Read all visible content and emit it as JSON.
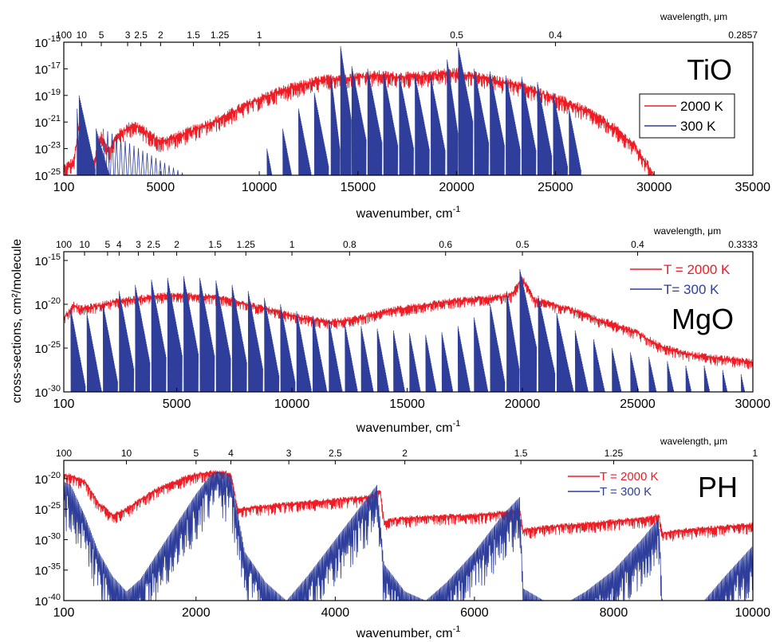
{
  "figure": {
    "y_title": "cross-sections, cm²/molecule",
    "x_title": "wavenumber, cm",
    "x_title_sup": "-1",
    "top_axis_label": "wavelength, μm"
  },
  "colors": {
    "hot": "#ee1c24",
    "cold": "#2e3e9a"
  },
  "chart_data": [
    {
      "type": "line",
      "molecule": "TiO",
      "xlim": [
        100,
        35000
      ],
      "ylim_log10": [
        -25,
        -15
      ],
      "x_ticks": [
        100,
        5000,
        10000,
        15000,
        20000,
        25000,
        30000,
        35000
      ],
      "x_tick_labels": [
        "100",
        "5000",
        "10000",
        "15000",
        "20000",
        "25000",
        "30000",
        "35000"
      ],
      "y_ticks_log10": [
        -25,
        -23,
        -21,
        -19,
        -17,
        -15
      ],
      "top_ticks": [
        {
          "label": "100",
          "wn": 100
        },
        {
          "label": "10",
          "wn": 1000
        },
        {
          "label": "5",
          "wn": 2000
        },
        {
          "label": "3",
          "wn": 3333
        },
        {
          "label": "2.5",
          "wn": 4000
        },
        {
          "label": "2",
          "wn": 5000
        },
        {
          "label": "1.5",
          "wn": 6667
        },
        {
          "label": "1.25",
          "wn": 8000
        },
        {
          "label": "1",
          "wn": 10000
        },
        {
          "label": "0.5",
          "wn": 20000
        },
        {
          "label": "0.4",
          "wn": 25000
        },
        {
          "label": "0.2857",
          "wn": 35000
        }
      ],
      "legend": [
        "2000 K",
        "300 K"
      ],
      "series": [
        {
          "name": "2000 K",
          "x": [
            100,
            300,
            600,
            900,
            1100,
            1300,
            1600,
            2000,
            2400,
            2800,
            3200,
            3600,
            4000,
            4500,
            5000,
            6000,
            7000,
            8000,
            9000,
            10000,
            11000,
            12000,
            13000,
            14000,
            15000,
            16000,
            17000,
            18000,
            19000,
            20000,
            21000,
            22000,
            23000,
            24000,
            25000,
            26000,
            27000,
            28000,
            29000,
            30000
          ],
          "y_log10": [
            -24.5,
            -24.3,
            -24.0,
            -21.0,
            -21.5,
            -24.2,
            -24.2,
            -22.0,
            -23.2,
            -22.0,
            -21.6,
            -21.2,
            -21.5,
            -22.0,
            -22.5,
            -22.0,
            -21.4,
            -20.8,
            -20.0,
            -19.3,
            -18.7,
            -18.3,
            -17.9,
            -17.7,
            -17.6,
            -17.5,
            -17.6,
            -17.6,
            -17.4,
            -17.3,
            -17.6,
            -17.9,
            -18.2,
            -18.7,
            -19.2,
            -19.8,
            -20.5,
            -21.5,
            -22.8,
            -25.0
          ]
        },
        {
          "name": "300 K",
          "band_centers": [
            800,
            1000,
            1900,
            3100,
            10500,
            11300,
            12100,
            12900,
            13700,
            14200,
            14800,
            15600,
            16400,
            17200,
            18000,
            18800,
            19600,
            20200,
            21000,
            21800,
            22600,
            23400,
            24200,
            25000,
            25800
          ],
          "band_peaks_log10": [
            -20.0,
            -19.0,
            -21.5,
            -21.5,
            -23.0,
            -21.5,
            -20.0,
            -18.8,
            -17.5,
            -15.3,
            -16.8,
            -17.0,
            -17.2,
            -17.4,
            -17.5,
            -17.6,
            -16.3,
            -15.4,
            -17.0,
            -17.2,
            -17.5,
            -17.6,
            -18.0,
            -18.8,
            -20.0
          ],
          "x_range": [
            100,
            26300
          ]
        }
      ]
    },
    {
      "type": "line",
      "molecule": "MgO",
      "xlim": [
        100,
        30000
      ],
      "ylim_log10": [
        -30,
        -14
      ],
      "x_ticks": [
        100,
        5000,
        10000,
        15000,
        20000,
        25000,
        30000
      ],
      "x_tick_labels": [
        "100",
        "5000",
        "10000",
        "15000",
        "20000",
        "25000",
        "30000"
      ],
      "y_ticks_log10": [
        -30,
        -25,
        -20,
        -15
      ],
      "top_ticks": [
        {
          "label": "100",
          "wn": 100
        },
        {
          "label": "10",
          "wn": 1000
        },
        {
          "label": "5",
          "wn": 2000
        },
        {
          "label": "4",
          "wn": 2500
        },
        {
          "label": "3",
          "wn": 3333
        },
        {
          "label": "2.5",
          "wn": 4000
        },
        {
          "label": "2",
          "wn": 5000
        },
        {
          "label": "1.5",
          "wn": 6667
        },
        {
          "label": "1.25",
          "wn": 8000
        },
        {
          "label": "1",
          "wn": 10000
        },
        {
          "label": "0.8",
          "wn": 12500
        },
        {
          "label": "0.6",
          "wn": 16667
        },
        {
          "label": "0.5",
          "wn": 20000
        },
        {
          "label": "0.4",
          "wn": 25000
        },
        {
          "label": "0.3333",
          "wn": 30000
        }
      ],
      "legend": [
        "T = 2000 K",
        "T= 300 K"
      ],
      "series": [
        {
          "name": "T = 2000 K",
          "x": [
            100,
            300,
            500,
            800,
            1500,
            2500,
            3500,
            4500,
            5500,
            6500,
            7500,
            8500,
            9500,
            10500,
            11500,
            12500,
            13500,
            14500,
            15500,
            16500,
            17500,
            18500,
            19500,
            20000,
            20500,
            21000,
            22000,
            23000,
            24000,
            25000,
            26000,
            27000,
            28000,
            29000,
            30000
          ],
          "y_log10": [
            -21.5,
            -21.0,
            -20.0,
            -20.5,
            -20.2,
            -19.6,
            -19.3,
            -19.0,
            -19.0,
            -19.2,
            -19.6,
            -20.3,
            -21.0,
            -21.6,
            -22.0,
            -21.8,
            -21.2,
            -20.6,
            -20.2,
            -19.8,
            -19.5,
            -19.3,
            -19.0,
            -17.0,
            -19.5,
            -19.8,
            -20.5,
            -21.5,
            -22.3,
            -23.3,
            -24.8,
            -25.6,
            -26.0,
            -26.3,
            -26.6
          ]
        },
        {
          "name": "T= 300 K",
          "band_centers": [
            500,
            1200,
            1900,
            2600,
            3300,
            4000,
            4700,
            5400,
            6100,
            6800,
            7500,
            8200,
            8900,
            9600,
            10300,
            11000,
            11700,
            12400,
            13100,
            13800,
            14500,
            15200,
            15900,
            16600,
            17300,
            18000,
            18700,
            19400,
            20000,
            20800,
            21600,
            22400,
            23200,
            24000,
            24800,
            25600,
            26400,
            27200,
            28000,
            28800,
            29600
          ],
          "band_peaks_log10": [
            -20.5,
            -21.0,
            -20.0,
            -18.5,
            -17.8,
            -17.2,
            -17.0,
            -16.8,
            -17.0,
            -17.3,
            -17.8,
            -18.5,
            -19.3,
            -20.0,
            -20.8,
            -21.3,
            -21.8,
            -22.3,
            -22.5,
            -22.8,
            -23.0,
            -23.3,
            -23.5,
            -23.2,
            -22.5,
            -21.5,
            -20.0,
            -18.5,
            -16.0,
            -19.0,
            -21.0,
            -23.0,
            -24.0,
            -25.0,
            -25.5,
            -26.0,
            -26.5,
            -27.0,
            -27.0,
            -27.5,
            -28.0
          ],
          "x_range": [
            100,
            30000
          ]
        }
      ]
    },
    {
      "type": "line",
      "molecule": "PH",
      "xlim": [
        100,
        10000
      ],
      "ylim_log10": [
        -40,
        -17
      ],
      "x_ticks": [
        100,
        2000,
        4000,
        6000,
        8000,
        10000
      ],
      "x_tick_labels": [
        "100",
        "2000",
        "4000",
        "6000",
        "8000",
        "10000"
      ],
      "y_ticks_log10": [
        -40,
        -35,
        -30,
        -25,
        -20
      ],
      "top_ticks": [
        {
          "label": "100",
          "wn": 100
        },
        {
          "label": "10",
          "wn": 1000
        },
        {
          "label": "5",
          "wn": 2000
        },
        {
          "label": "4",
          "wn": 2500
        },
        {
          "label": "3",
          "wn": 3333
        },
        {
          "label": "2.5",
          "wn": 4000
        },
        {
          "label": "2",
          "wn": 5000
        },
        {
          "label": "1.5",
          "wn": 6667
        },
        {
          "label": "1.25",
          "wn": 8000
        },
        {
          "label": "1",
          "wn": 10000
        }
      ],
      "legend": [
        "T = 2000 K",
        "T =  300 K"
      ],
      "series": [
        {
          "name": "T = 2000 K",
          "x": [
            100,
            200,
            400,
            600,
            800,
            1000,
            1200,
            1400,
            1600,
            1800,
            2000,
            2200,
            2400,
            2500,
            2600,
            3000,
            3500,
            4000,
            4500,
            4650,
            4700,
            5000,
            5500,
            6000,
            6500,
            6650,
            6700,
            7000,
            7500,
            8000,
            8500,
            8650,
            8700,
            9000,
            9500,
            10000
          ],
          "y_log10": [
            -19.5,
            -19.5,
            -20.5,
            -24.0,
            -26.0,
            -25.0,
            -23.5,
            -22.0,
            -21.0,
            -20.0,
            -19.3,
            -19.0,
            -19.0,
            -19.2,
            -25.0,
            -24.5,
            -24.0,
            -23.5,
            -23.0,
            -22.0,
            -27.0,
            -26.5,
            -26.2,
            -26.0,
            -25.5,
            -25.0,
            -28.5,
            -28.0,
            -27.5,
            -27.0,
            -26.5,
            -26.0,
            -29.0,
            -28.5,
            -28.0,
            -27.5
          ]
        },
        {
          "name": "T =  300 K",
          "x": [
            100,
            200,
            400,
            600,
            800,
            1000,
            1200,
            1400,
            1600,
            1800,
            2000,
            2200,
            2300,
            2400,
            2500,
            2700,
            3000,
            3300,
            3600,
            4000,
            4400,
            4600,
            4700,
            5000,
            5300,
            5600,
            6000,
            6400,
            6650,
            6700,
            7000,
            7300,
            7600,
            8000,
            8400,
            8650,
            8700,
            9000,
            9300,
            9600,
            10000
          ],
          "y_log10": [
            -20.5,
            -21.0,
            -26.0,
            -32.0,
            -36.0,
            -38.5,
            -36.5,
            -33.0,
            -29.5,
            -26.0,
            -22.5,
            -19.5,
            -18.8,
            -19.0,
            -19.5,
            -32.0,
            -37.0,
            -40.0,
            -36.0,
            -30.0,
            -24.0,
            -21.0,
            -34.0,
            -38.5,
            -40.0,
            -37.0,
            -32.0,
            -26.0,
            -23.0,
            -38.0,
            -40.0,
            -40.5,
            -38.5,
            -35.0,
            -30.0,
            -26.5,
            -40.0,
            -41.0,
            -40.0,
            -36.0,
            -31.0
          ]
        }
      ]
    }
  ]
}
